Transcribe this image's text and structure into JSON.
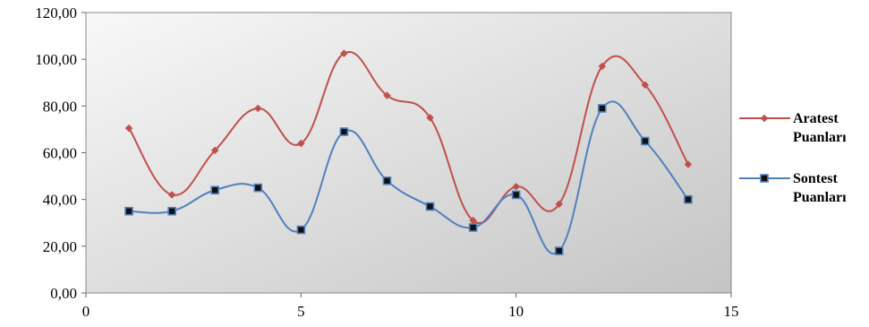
{
  "chart_data": {
    "type": "scatter",
    "title": "",
    "xlabel": "",
    "ylabel": "",
    "xlim": [
      0,
      15
    ],
    "ylim": [
      0,
      120
    ],
    "x_ticks": [
      "0",
      "5",
      "10",
      "15"
    ],
    "y_ticks": [
      "0,00",
      "20,00",
      "40,00",
      "60,00",
      "80,00",
      "100,00",
      "120,00"
    ],
    "grid": false,
    "legend_position": "right",
    "series": [
      {
        "name": "Aratest Puanları",
        "legend_lines": [
          "Aratest",
          "Puanları"
        ],
        "color": "#c0504d",
        "marker": "diamond",
        "smooth": true,
        "x": [
          1,
          2,
          3,
          4,
          5,
          6,
          7,
          8,
          9,
          10,
          11,
          12,
          13,
          14
        ],
        "y": [
          70.5,
          42,
          61,
          79,
          64,
          102.5,
          84.5,
          75,
          31,
          45.5,
          38,
          97,
          89,
          55
        ]
      },
      {
        "name": "Sontest Puanları",
        "legend_lines": [
          "Sontest",
          "Puanları"
        ],
        "color": "#4f81bd",
        "marker": "square",
        "smooth": true,
        "x": [
          1,
          2,
          3,
          4,
          5,
          6,
          7,
          8,
          9,
          10,
          11,
          12,
          13,
          14
        ],
        "y": [
          35,
          35,
          44,
          45,
          27,
          69,
          48,
          37,
          28,
          42,
          18,
          79,
          65,
          40
        ]
      }
    ]
  }
}
